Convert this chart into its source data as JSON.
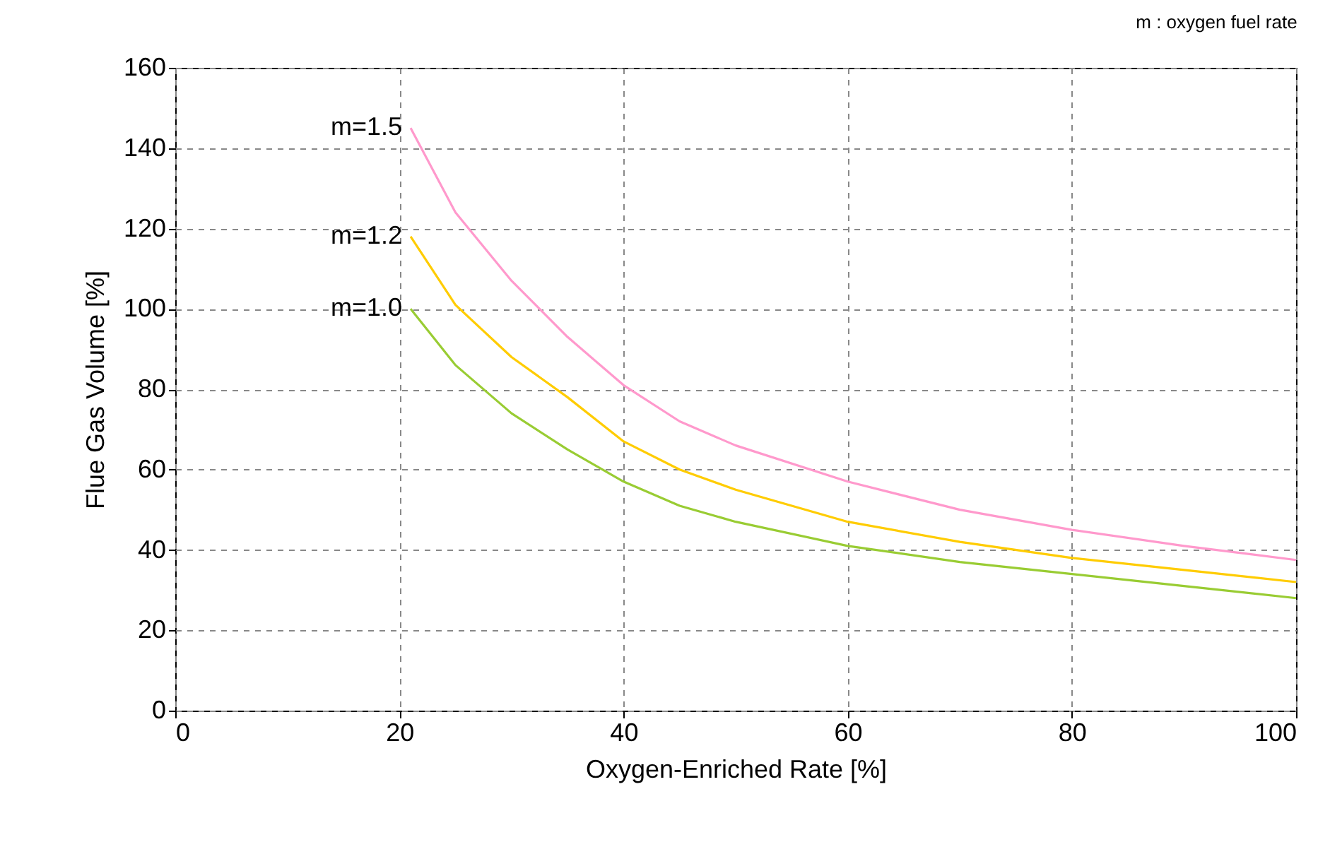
{
  "chart_data": {
    "type": "line",
    "xlabel": "Oxygen-Enriched Rate [%]",
    "ylabel": "Flue Gas Volume [%]",
    "annotations": [
      "m : oxygen fuel rate"
    ],
    "x": [
      21,
      25,
      30,
      35,
      40,
      45,
      50,
      60,
      70,
      80,
      90,
      100
    ],
    "series": [
      {
        "name": "m=1.5",
        "color": "#ff99cc",
        "values": [
          145,
          124,
          107,
          93,
          81,
          72,
          66,
          57,
          50,
          45,
          41,
          37.5
        ]
      },
      {
        "name": "m=1.2",
        "color": "#ffcc00",
        "values": [
          118,
          101,
          88,
          78,
          67,
          60,
          55,
          47,
          42,
          38,
          35,
          32
        ]
      },
      {
        "name": "m=1.0",
        "color": "#99cc33",
        "values": [
          100,
          86,
          74,
          65,
          57,
          51,
          47,
          41,
          37,
          34,
          31,
          28
        ]
      }
    ],
    "xlim": [
      0,
      100
    ],
    "xticks": [
      0,
      20,
      40,
      60,
      80,
      100
    ],
    "ylim": [
      0,
      160
    ],
    "yticks": [
      0,
      20,
      40,
      60,
      80,
      100,
      120,
      140,
      160
    ],
    "grid": true,
    "legend": false,
    "marker": "none",
    "line_style": "solid"
  }
}
